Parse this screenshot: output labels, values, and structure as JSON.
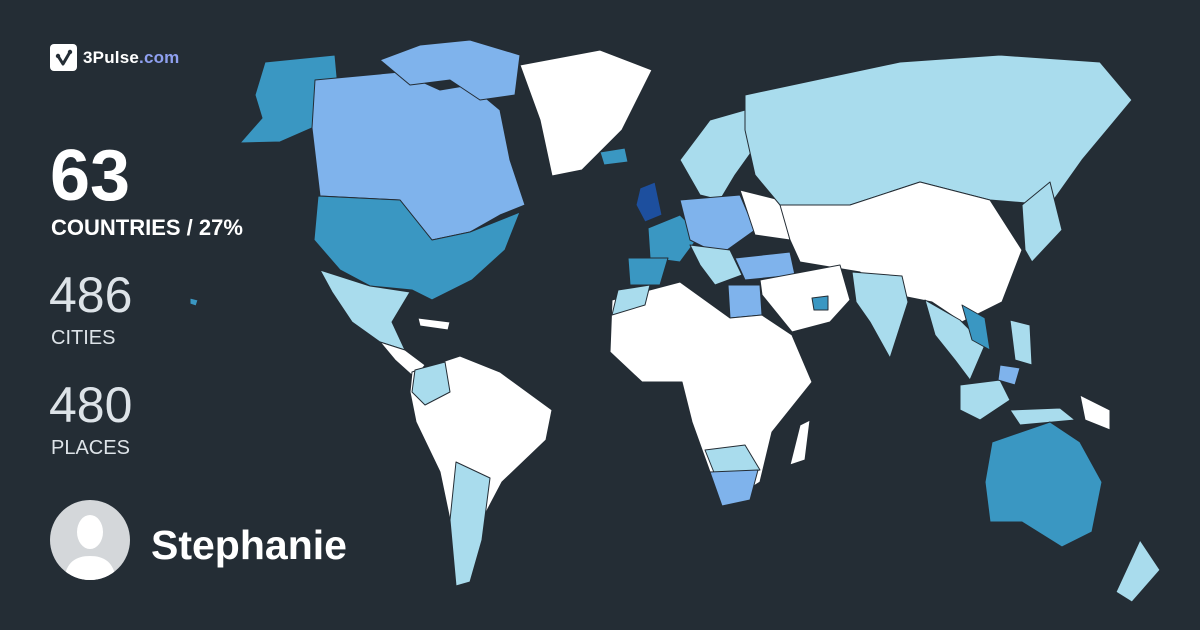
{
  "brand": {
    "name": "3Pulse",
    "tld": ".com",
    "icon": "check-pulse-icon"
  },
  "stats": {
    "countries": {
      "value": "63",
      "label": "COUNTRIES / 27%"
    },
    "cities": {
      "value": "486",
      "label": "CITIES"
    },
    "places": {
      "value": "480",
      "label": "PLACES"
    }
  },
  "user": {
    "name": "Stephanie",
    "avatar": "default-user-silhouette-icon"
  },
  "map": {
    "background": "#242d35",
    "legend_colors": {
      "unvisited": "#ffffff",
      "level1": "#a9dced",
      "level2": "#7fb3ec",
      "level3": "#3a97c2",
      "level4": "#1d4f9e"
    }
  }
}
